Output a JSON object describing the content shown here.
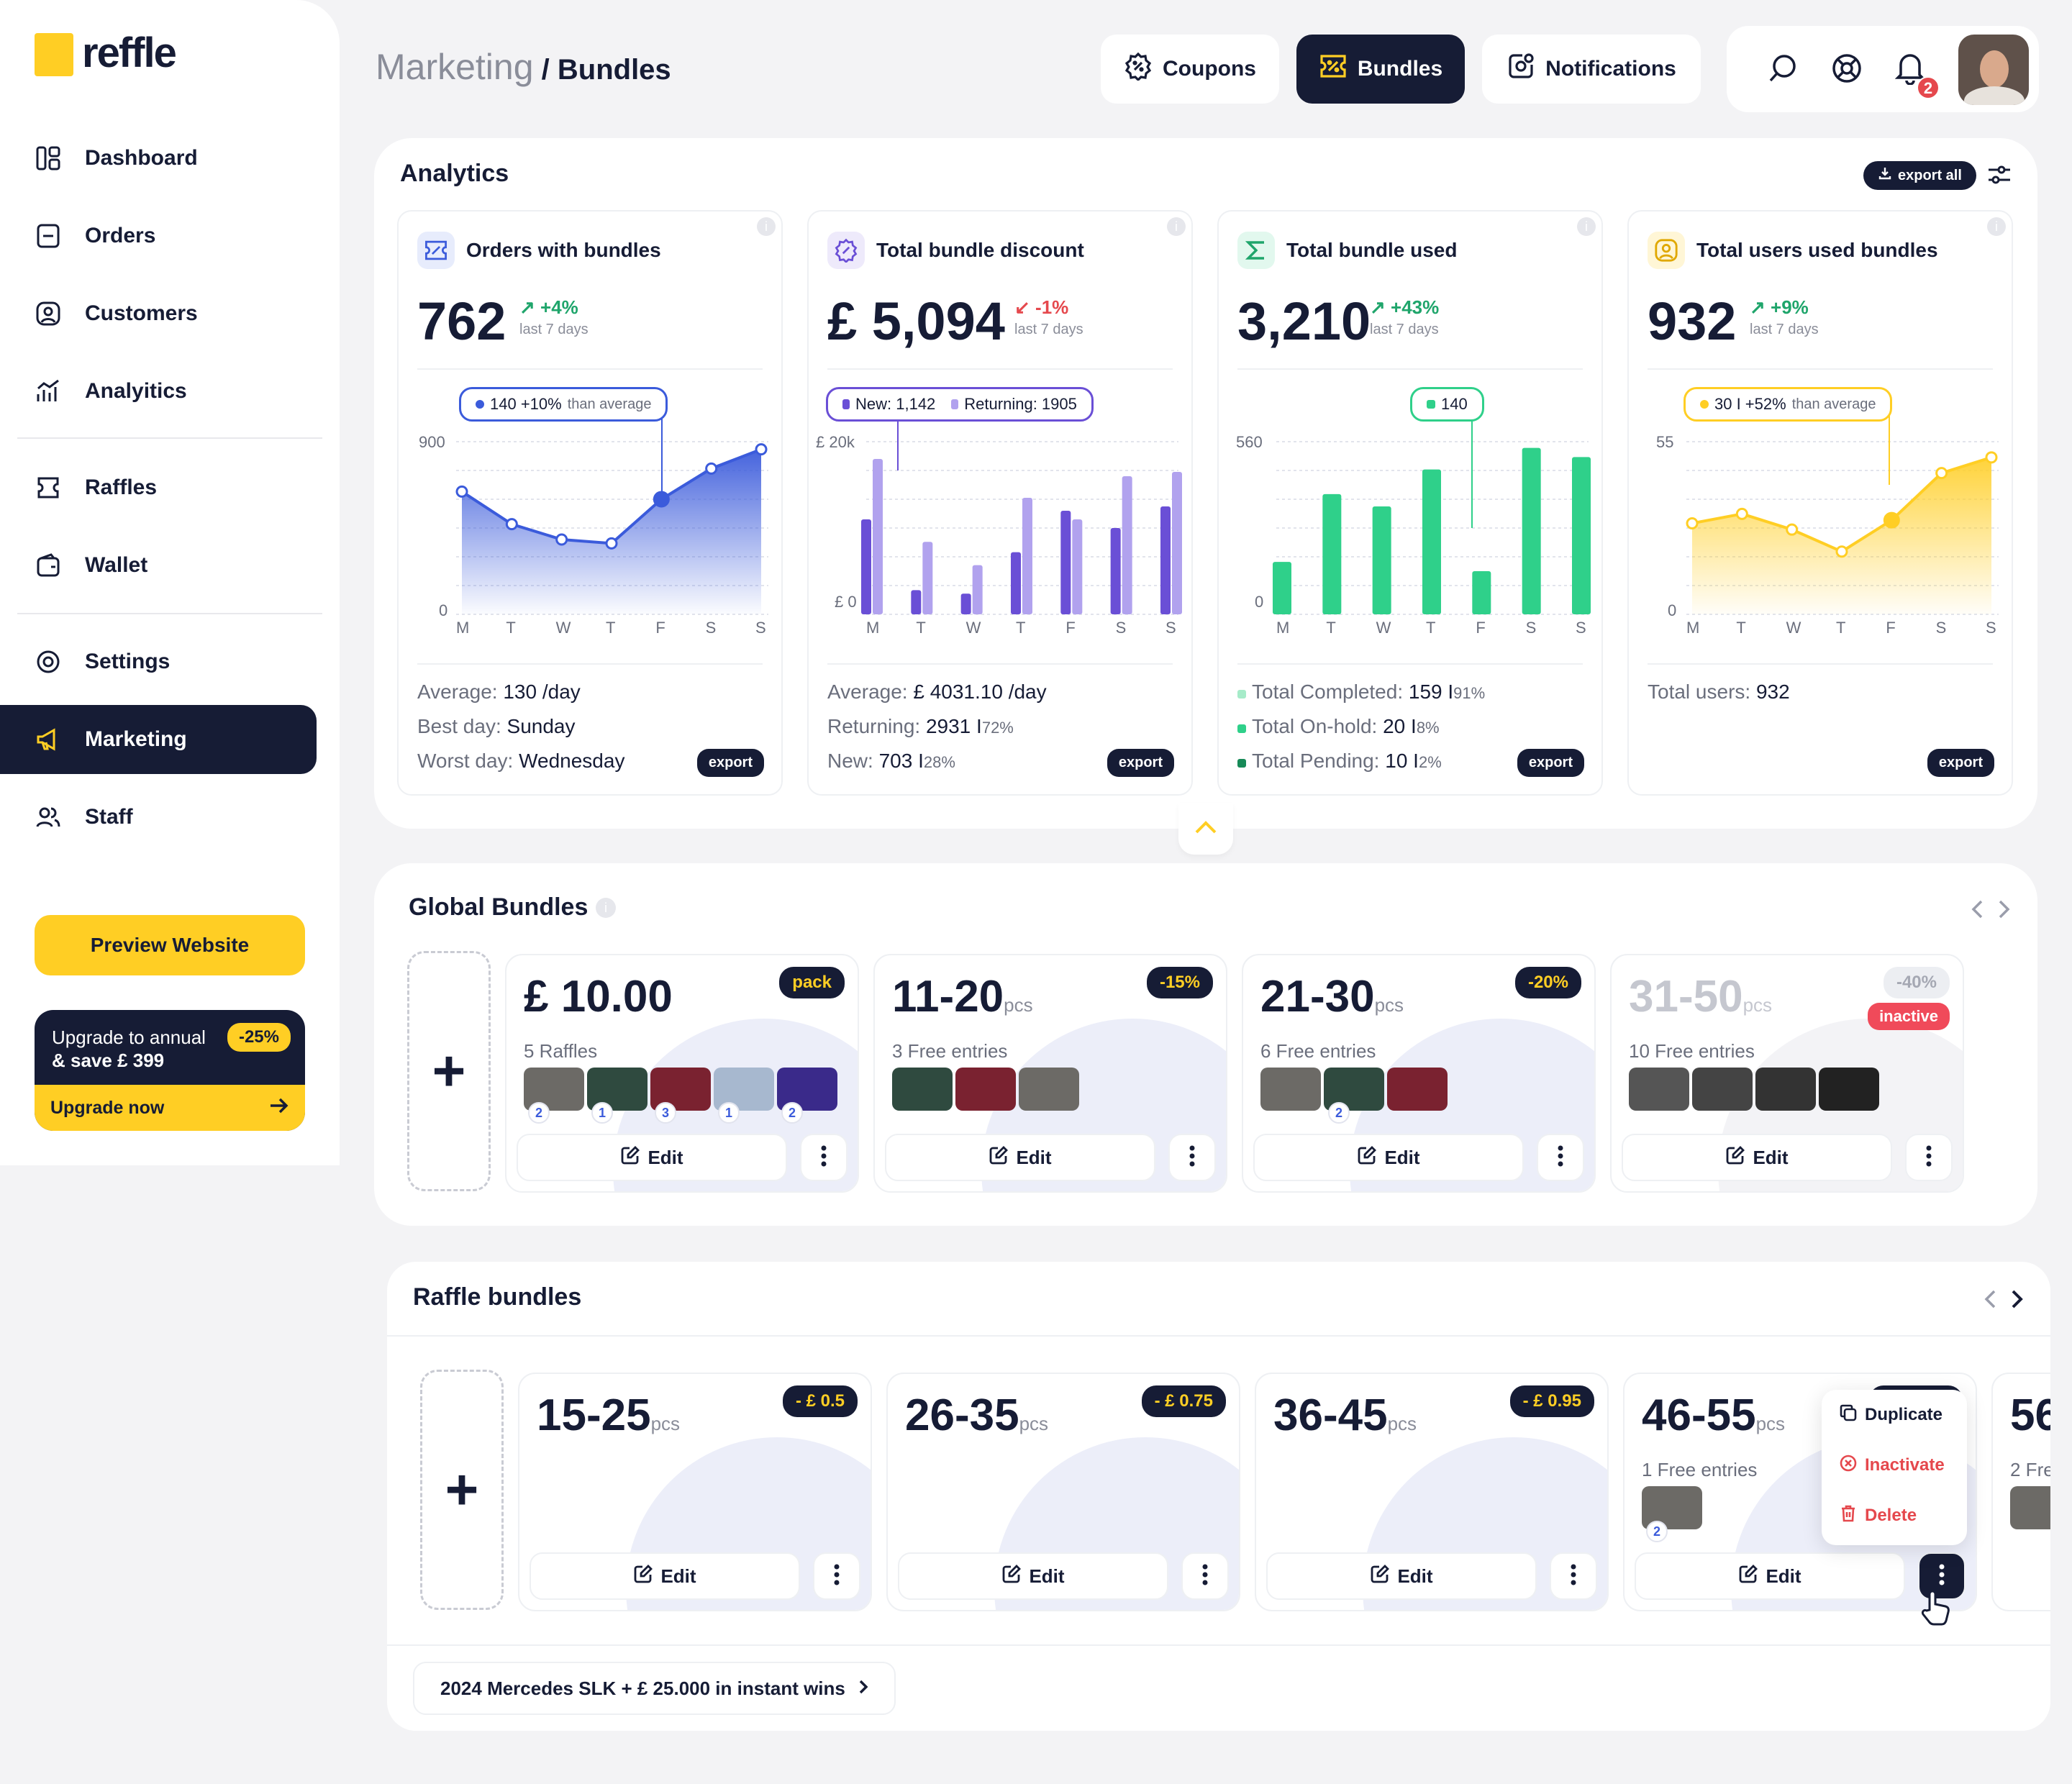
{
  "brand": {
    "name": "reffle"
  },
  "sidebar": {
    "items": [
      {
        "label": "Dashboard",
        "icon": "dashboard-icon"
      },
      {
        "label": "Orders",
        "icon": "orders-icon"
      },
      {
        "label": "Customers",
        "icon": "customers-icon"
      },
      {
        "label": "Analyitics",
        "icon": "analytics-icon"
      },
      {
        "label": "Raffles",
        "icon": "raffles-icon"
      },
      {
        "label": "Wallet",
        "icon": "wallet-icon"
      },
      {
        "label": "Settings",
        "icon": "settings-icon"
      },
      {
        "label": "Marketing",
        "icon": "marketing-icon",
        "active": true
      },
      {
        "label": "Staff",
        "icon": "staff-icon"
      }
    ],
    "preview_label": "Preview Website",
    "upgrade": {
      "text1": "Upgrade to annual",
      "text2": "& save £ 399",
      "badge": "-25%",
      "cta": "Upgrade now"
    }
  },
  "header": {
    "crumb_parent": "Marketing",
    "crumb_sep": " / ",
    "crumb_current": "Bundles",
    "tabs": [
      {
        "label": "Coupons"
      },
      {
        "label": "Bundles",
        "active": true
      },
      {
        "label": "Notifications"
      }
    ],
    "notif_count": "2"
  },
  "analytics": {
    "title": "Analytics",
    "export_all": "export all",
    "export_label": "export",
    "cards": [
      {
        "title": "Orders with bundles",
        "value": "762",
        "change": "+4%",
        "period": "last 7 days",
        "tooltip": "140 +10%",
        "tooltip_sub": "than average",
        "ymax": "900",
        "ymin": "0",
        "days": [
          "M",
          "T",
          "W",
          "T",
          "F",
          "S",
          "S"
        ],
        "footer": [
          {
            "k": "Average:",
            "v": "130 /day"
          },
          {
            "k": "Best day:",
            "v": "Sunday"
          },
          {
            "k": "Worst day:",
            "v": "Wednesday"
          }
        ]
      },
      {
        "title": "Total bundle discount",
        "value": "£ 5,094",
        "change": "-1%",
        "period": "last 7 days",
        "tooltip_a": "New: 1,142",
        "tooltip_b": "Returning: 1905",
        "ymax": "£ 20k",
        "ymin": "£ 0",
        "days": [
          "M",
          "T",
          "W",
          "T",
          "F",
          "S",
          "S"
        ],
        "footer": [
          {
            "k": "Average:",
            "v": "£ 4031.10 /day"
          },
          {
            "k": "Returning:",
            "v": "2931 I",
            "s": "72%"
          },
          {
            "k": "New:",
            "v": "703 I",
            "s": "28%"
          }
        ]
      },
      {
        "title": "Total bundle used",
        "value": "3,210",
        "change": "+43%",
        "period": "last 7 days",
        "tooltip": "140",
        "ymax": "560",
        "ymin": "0",
        "days": [
          "M",
          "T",
          "W",
          "T",
          "F",
          "S",
          "S"
        ],
        "footer": [
          {
            "k": "Total Completed:",
            "v": "159 I",
            "s": "91%"
          },
          {
            "k": "Total On-hold:",
            "v": "20 I",
            "s": "8%"
          },
          {
            "k": "Total Pending:",
            "v": "10 I",
            "s": "2%"
          }
        ]
      },
      {
        "title": "Total users used bundles",
        "value": "932",
        "change": "+9%",
        "period": "last 7 days",
        "tooltip": "30 I +52%",
        "tooltip_sub": "than average",
        "ymax": "55",
        "ymin": "0",
        "days": [
          "M",
          "T",
          "W",
          "T",
          "F",
          "S",
          "S"
        ],
        "footer": [
          {
            "k": "Total users:",
            "v": "932"
          }
        ]
      }
    ]
  },
  "chart_data": [
    {
      "type": "area",
      "title": "Orders with bundles",
      "categories": [
        "M",
        "T",
        "W",
        "T",
        "F",
        "S",
        "S"
      ],
      "values": [
        640,
        470,
        390,
        370,
        600,
        760,
        860
      ],
      "ylim": [
        0,
        900
      ]
    },
    {
      "type": "bar",
      "title": "Total bundle discount",
      "categories": [
        "M",
        "T",
        "W",
        "T",
        "F",
        "S",
        "S"
      ],
      "series": [
        {
          "name": "New",
          "values": [
            11000,
            2800,
            2400,
            7200,
            12000,
            10000,
            12500
          ]
        },
        {
          "name": "Returning",
          "values": [
            18000,
            8400,
            5700,
            13500,
            11000,
            16000,
            16500
          ]
        }
      ],
      "ylim": [
        0,
        20000
      ]
    },
    {
      "type": "bar",
      "title": "Total bundle used",
      "categories": [
        "M",
        "T",
        "W",
        "T",
        "F",
        "S",
        "S"
      ],
      "values": [
        170,
        390,
        350,
        470,
        140,
        540,
        510
      ],
      "ylim": [
        0,
        560
      ]
    },
    {
      "type": "area",
      "title": "Total users used bundles",
      "categories": [
        "M",
        "T",
        "W",
        "T",
        "F",
        "S",
        "S"
      ],
      "values": [
        29,
        32,
        27,
        20,
        30,
        45,
        50
      ],
      "ylim": [
        0,
        55
      ]
    }
  ],
  "global_bundles": {
    "title": "Global Bundles",
    "items": [
      {
        "title": "£ 10.00",
        "unit": "",
        "tag": "pack",
        "desc": "5 Raffles",
        "thumbs": [
          {
            "n": "2",
            "c": "#6c6a66"
          },
          {
            "n": "1",
            "c": "#2f4a3f"
          },
          {
            "n": "3",
            "c": "#7a2230"
          },
          {
            "n": "1",
            "c": "#a7b8cf"
          },
          {
            "n": "2",
            "c": "#3a2a8a"
          }
        ],
        "edit": "Edit"
      },
      {
        "title": "11-20",
        "unit": "pcs",
        "tag": "-15%",
        "desc": "3 Free entries",
        "thumbs": [
          {
            "n": "",
            "c": "#2f4a3f"
          },
          {
            "n": "",
            "c": "#7a2230"
          },
          {
            "n": "",
            "c": "#6c6a66"
          }
        ],
        "edit": "Edit"
      },
      {
        "title": "21-30",
        "unit": "pcs",
        "tag": "-20%",
        "desc": "6 Free entries",
        "thumbs": [
          {
            "n": "",
            "c": "#6c6a66"
          },
          {
            "n": "2",
            "c": "#2f4a3f"
          },
          {
            "n": "",
            "c": "#7a2230"
          }
        ],
        "edit": "Edit"
      },
      {
        "title": "31-50",
        "unit": "pcs",
        "tag": "-40%",
        "status": "inactive",
        "desc": "10 Free entries",
        "thumbs": [
          {
            "n": "",
            "c": "#555"
          },
          {
            "n": "",
            "c": "#444"
          },
          {
            "n": "",
            "c": "#333"
          },
          {
            "n": "",
            "c": "#222"
          }
        ],
        "edit": "Edit"
      }
    ]
  },
  "raffle_bundles": {
    "title": "Raffle bundles",
    "items": [
      {
        "title": "15-25",
        "unit": "pcs",
        "tag": "- £ 0.5",
        "edit": "Edit"
      },
      {
        "title": "26-35",
        "unit": "pcs",
        "tag": "- £ 0.75",
        "edit": "Edit"
      },
      {
        "title": "36-45",
        "unit": "pcs",
        "tag": "- £ 0.95",
        "edit": "Edit"
      },
      {
        "title": "46-55",
        "unit": "pcs",
        "tag": "",
        "desc": "1 Free entries",
        "thumb_n": "2",
        "edit": "Edit"
      },
      {
        "title": "56",
        "desc": "2 Fre"
      }
    ],
    "menu": [
      "Duplicate",
      "Inactivate",
      "Delete"
    ],
    "raffle_link": "2024 Mercedes SLK + £ 25.000 in instant wins"
  },
  "colors": {
    "navy": "#161c35",
    "yellow": "#ffce24",
    "blue": "#3b5bdb",
    "purple": "#6a4fd6",
    "green": "#2fd08a",
    "red": "#e5484d"
  }
}
